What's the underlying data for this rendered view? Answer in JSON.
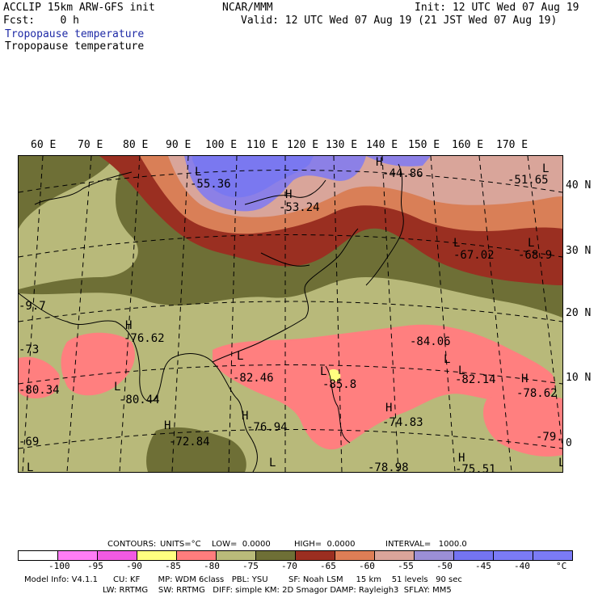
{
  "header": {
    "model": "ACCLIP 15km ARW-GFS init",
    "org": "NCAR/MMM",
    "init": "Init: 12 UTC Wed 07 Aug 19",
    "fcst": "Fcst:    0 h",
    "valid": "Valid: 12 UTC Wed 07 Aug 19 (21 JST Wed 07 Aug 19)",
    "title1": "Tropopause temperature",
    "title2": "Tropopause temperature"
  },
  "axes": {
    "lon_labels": [
      "60 E",
      "70 E",
      "80 E",
      "90 E",
      "100 E",
      "110 E",
      "120 E",
      "130 E",
      "140 E",
      "150 E",
      "160 E",
      "170 E"
    ],
    "lat_labels": [
      "40 N",
      "30 N",
      "20 N",
      "10 N",
      "0"
    ]
  },
  "map_labels": [
    {
      "t": "L"
    },
    {
      "t": "-55.36"
    },
    {
      "t": "H"
    },
    {
      "t": "-53.24"
    },
    {
      "t": "H"
    },
    {
      "t": "-44.86"
    },
    {
      "t": "L"
    },
    {
      "t": "-51.65"
    },
    {
      "t": "L"
    },
    {
      "t": "-67.02"
    },
    {
      "t": "L"
    },
    {
      "t": "-68.9"
    },
    {
      "t": "-9.7"
    },
    {
      "t": "H"
    },
    {
      "t": "-76.62"
    },
    {
      "t": "-73"
    },
    {
      "t": "L"
    },
    {
      "t": "-82.46"
    },
    {
      "t": "-84.06"
    },
    {
      "t": "L"
    },
    {
      "t": "L"
    },
    {
      "t": "-85.8"
    },
    {
      "t": "L"
    },
    {
      "t": "-82.14"
    },
    {
      "t": "H"
    },
    {
      "t": "-78.62"
    },
    {
      "t": "-80.34"
    },
    {
      "t": "L"
    },
    {
      "t": "-80.44"
    },
    {
      "t": "H"
    },
    {
      "t": "-76.94"
    },
    {
      "t": "H"
    },
    {
      "t": "-74.83"
    },
    {
      "t": "H"
    },
    {
      "t": "-72.84"
    },
    {
      "t": "-79.8"
    },
    {
      "t": "-69"
    },
    {
      "t": "L"
    },
    {
      "t": "L"
    },
    {
      "t": "-78.98"
    },
    {
      "t": "H"
    },
    {
      "t": "-75.51"
    },
    {
      "t": "L"
    }
  ],
  "contour_info": {
    "contours": "CONTOURS:",
    "units": "UNITS=°C",
    "low": "LOW=  0.0000",
    "high": "HIGH=  0.0000",
    "interval": "INTERVAL=   1000.0"
  },
  "legend": {
    "colors": [
      "#ffffff",
      "#ff7df5",
      "#f25ae3",
      "#ffff80",
      "#ff7d7d",
      "#b9bb7a",
      "#6e6f36",
      "#9b2e20",
      "#de7e56",
      "#dba59a",
      "#9b8fd6",
      "#7474f2",
      "#7b7bf6",
      "#7b7bf6"
    ],
    "ticks": [
      "-100",
      "-95",
      "-90",
      "-85",
      "-80",
      "-75",
      "-70",
      "-65",
      "-60",
      "-55",
      "-50",
      "-45",
      "-40"
    ],
    "unit": "°C"
  },
  "model_info": {
    "line1": "Model Info: V4.1.1      CU: KF       MP: WDM 6class   PBL: YSU        SF: Noah LSM     15 km    51 levels   90 sec",
    "line2": "LW: RRTMG    SW: RRTMG   DIFF: simple KM: 2D Smagor DAMP: Rayleigh3  SFLAY: MM5"
  },
  "fill_colors": {
    "purple": "#8c80e6",
    "blue": "#7a78f0",
    "pinkbeige": "#d9a59a",
    "orange": "#d97f57",
    "brown": "#9a2f21",
    "olive_dark": "#6e6f36",
    "olive_light": "#b8b97a",
    "salmon": "#ff7f7f",
    "yellow": "#ffff80"
  }
}
